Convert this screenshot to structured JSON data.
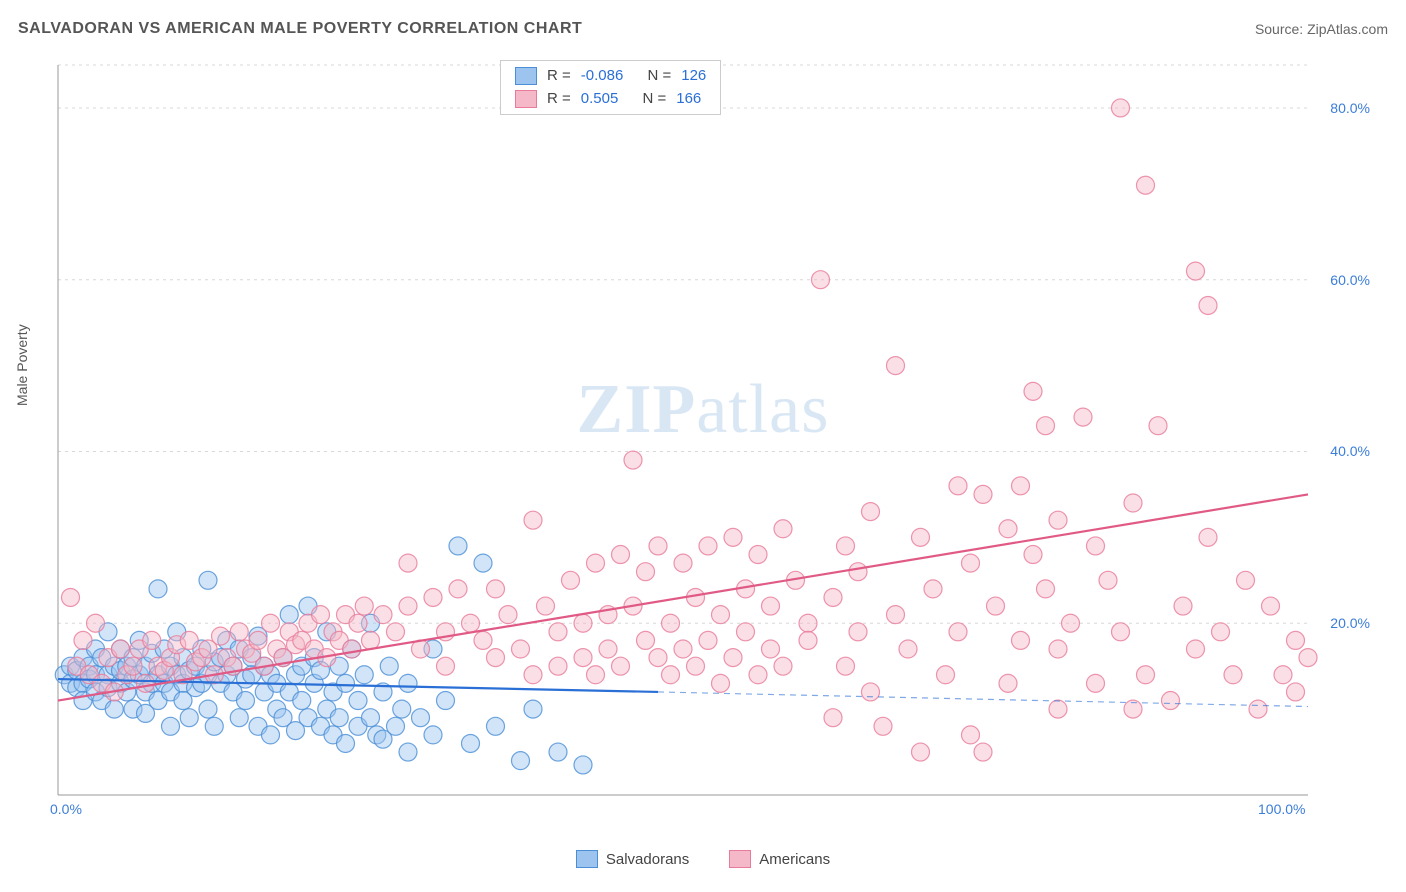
{
  "title": "SALVADORAN VS AMERICAN MALE POVERTY CORRELATION CHART",
  "source_label": "Source:",
  "source_name": "ZipAtlas.com",
  "ylabel": "Male Poverty",
  "watermark_a": "ZIP",
  "watermark_b": "atlas",
  "chart": {
    "type": "scatter",
    "xlim": [
      0,
      100
    ],
    "ylim": [
      0,
      85
    ],
    "x_ticks": [
      0,
      100
    ],
    "x_tick_labels": [
      "0.0%",
      "100.0%"
    ],
    "y_ticks": [
      20,
      40,
      60,
      80
    ],
    "y_tick_labels": [
      "20.0%",
      "40.0%",
      "60.0%",
      "80.0%"
    ],
    "grid_color": "#d8d8d8",
    "grid_dash": "3,4",
    "axis_color": "#999999",
    "background_color": "#ffffff",
    "label_color": "#3b7dd8",
    "marker_radius": 9,
    "marker_opacity": 0.45,
    "marker_stroke_width": 1.2,
    "line_width": 2.2,
    "dash_line": "6,5",
    "series": {
      "salvadorans": {
        "label": "Salvadorans",
        "fill": "#9cc4ef",
        "stroke": "#4a8fd6",
        "line_color": "#2a6fd6",
        "R": "-0.086",
        "N": "126",
        "trend_solid": {
          "x1": 0,
          "y1": 13.5,
          "x2": 48,
          "y2": 12.0
        },
        "trend_dash": {
          "x1": 48,
          "y1": 12.0,
          "x2": 100,
          "y2": 10.3
        },
        "points": [
          [
            0.5,
            14
          ],
          [
            1,
            13
          ],
          [
            1,
            15
          ],
          [
            1.5,
            12.5
          ],
          [
            1.5,
            14.5
          ],
          [
            2,
            16
          ],
          [
            2,
            13
          ],
          [
            2,
            11
          ],
          [
            2.5,
            15
          ],
          [
            2.5,
            13.5
          ],
          [
            3,
            14
          ],
          [
            3,
            12
          ],
          [
            3,
            17
          ],
          [
            3.5,
            16
          ],
          [
            3.5,
            11
          ],
          [
            4,
            14
          ],
          [
            4,
            12.5
          ],
          [
            4,
            19
          ],
          [
            4.5,
            15
          ],
          [
            4.5,
            10
          ],
          [
            5,
            13
          ],
          [
            5,
            14.5
          ],
          [
            5,
            17
          ],
          [
            5.5,
            12
          ],
          [
            5.5,
            15
          ],
          [
            6,
            13.5
          ],
          [
            6,
            10
          ],
          [
            6,
            16
          ],
          [
            6.5,
            14
          ],
          [
            6.5,
            18
          ],
          [
            7,
            12
          ],
          [
            7,
            15
          ],
          [
            7,
            9.5
          ],
          [
            7.5,
            13
          ],
          [
            7.5,
            16.5
          ],
          [
            8,
            14
          ],
          [
            8,
            11
          ],
          [
            8,
            24
          ],
          [
            8.5,
            13
          ],
          [
            8.5,
            17
          ],
          [
            9,
            15
          ],
          [
            9,
            12
          ],
          [
            9,
            8
          ],
          [
            9.5,
            14
          ],
          [
            9.5,
            19
          ],
          [
            10,
            13
          ],
          [
            10,
            16
          ],
          [
            10,
            11
          ],
          [
            10.5,
            14.5
          ],
          [
            10.5,
            9
          ],
          [
            11,
            15
          ],
          [
            11,
            12.5
          ],
          [
            11.5,
            17
          ],
          [
            11.5,
            13
          ],
          [
            12,
            14
          ],
          [
            12,
            10
          ],
          [
            12,
            25
          ],
          [
            12.5,
            15.5
          ],
          [
            12.5,
            8
          ],
          [
            13,
            13
          ],
          [
            13,
            16
          ],
          [
            13.5,
            14
          ],
          [
            13.5,
            18
          ],
          [
            14,
            12
          ],
          [
            14,
            15
          ],
          [
            14.5,
            9
          ],
          [
            14.5,
            17
          ],
          [
            15,
            13.5
          ],
          [
            15,
            11
          ],
          [
            15.5,
            16
          ],
          [
            15.5,
            14
          ],
          [
            16,
            8
          ],
          [
            16,
            18.5
          ],
          [
            16.5,
            12
          ],
          [
            16.5,
            15
          ],
          [
            17,
            7
          ],
          [
            17,
            14
          ],
          [
            17.5,
            13
          ],
          [
            17.5,
            10
          ],
          [
            18,
            16
          ],
          [
            18,
            9
          ],
          [
            18.5,
            12
          ],
          [
            18.5,
            21
          ],
          [
            19,
            14
          ],
          [
            19,
            7.5
          ],
          [
            19.5,
            15
          ],
          [
            19.5,
            11
          ],
          [
            20,
            22
          ],
          [
            20,
            9
          ],
          [
            20.5,
            13
          ],
          [
            20.5,
            16
          ],
          [
            21,
            8
          ],
          [
            21,
            14.5
          ],
          [
            21.5,
            10
          ],
          [
            21.5,
            19
          ],
          [
            22,
            12
          ],
          [
            22,
            7
          ],
          [
            22.5,
            15
          ],
          [
            22.5,
            9
          ],
          [
            23,
            13
          ],
          [
            23,
            6
          ],
          [
            23.5,
            17
          ],
          [
            24,
            11
          ],
          [
            24,
            8
          ],
          [
            24.5,
            14
          ],
          [
            25,
            9
          ],
          [
            25,
            20
          ],
          [
            25.5,
            7
          ],
          [
            26,
            12
          ],
          [
            26,
            6.5
          ],
          [
            26.5,
            15
          ],
          [
            27,
            8
          ],
          [
            27.5,
            10
          ],
          [
            28,
            13
          ],
          [
            28,
            5
          ],
          [
            29,
            9
          ],
          [
            30,
            7
          ],
          [
            30,
            17
          ],
          [
            31,
            11
          ],
          [
            32,
            29
          ],
          [
            33,
            6
          ],
          [
            34,
            27
          ],
          [
            35,
            8
          ],
          [
            37,
            4
          ],
          [
            38,
            10
          ],
          [
            40,
            5
          ],
          [
            42,
            3.5
          ]
        ]
      },
      "americans": {
        "label": "Americans",
        "fill": "#f5b8c8",
        "stroke": "#e87a9a",
        "line_color": "#e05a85",
        "R": "0.505",
        "N": "166",
        "trend_solid": {
          "x1": 0,
          "y1": 11,
          "x2": 100,
          "y2": 35
        },
        "points": [
          [
            1,
            23
          ],
          [
            1.5,
            15
          ],
          [
            2,
            18
          ],
          [
            2.5,
            14
          ],
          [
            3,
            20
          ],
          [
            3.5,
            13
          ],
          [
            4,
            16
          ],
          [
            4.5,
            12
          ],
          [
            5,
            17
          ],
          [
            5.5,
            14
          ],
          [
            6,
            15
          ],
          [
            6.5,
            17
          ],
          [
            7,
            13
          ],
          [
            7.5,
            18
          ],
          [
            8,
            15
          ],
          [
            8.5,
            14.5
          ],
          [
            9,
            16
          ],
          [
            9.5,
            17.5
          ],
          [
            10,
            14
          ],
          [
            10.5,
            18
          ],
          [
            11,
            15.5
          ],
          [
            11.5,
            16
          ],
          [
            12,
            17
          ],
          [
            12.5,
            14
          ],
          [
            13,
            18.5
          ],
          [
            13.5,
            16
          ],
          [
            14,
            15
          ],
          [
            14.5,
            19
          ],
          [
            15,
            17
          ],
          [
            15.5,
            16.5
          ],
          [
            16,
            18
          ],
          [
            16.5,
            15
          ],
          [
            17,
            20
          ],
          [
            17.5,
            17
          ],
          [
            18,
            16
          ],
          [
            18.5,
            19
          ],
          [
            19,
            17.5
          ],
          [
            19.5,
            18
          ],
          [
            20,
            20
          ],
          [
            20.5,
            17
          ],
          [
            21,
            21
          ],
          [
            21.5,
            16
          ],
          [
            22,
            19
          ],
          [
            22.5,
            18
          ],
          [
            23,
            21
          ],
          [
            23.5,
            17
          ],
          [
            24,
            20
          ],
          [
            24.5,
            22
          ],
          [
            25,
            18
          ],
          [
            26,
            21
          ],
          [
            27,
            19
          ],
          [
            28,
            22
          ],
          [
            28,
            27
          ],
          [
            29,
            17
          ],
          [
            30,
            23
          ],
          [
            31,
            19
          ],
          [
            31,
            15
          ],
          [
            32,
            24
          ],
          [
            33,
            20
          ],
          [
            34,
            18
          ],
          [
            35,
            24
          ],
          [
            35,
            16
          ],
          [
            36,
            21
          ],
          [
            37,
            17
          ],
          [
            38,
            32
          ],
          [
            38,
            14
          ],
          [
            39,
            22
          ],
          [
            40,
            19
          ],
          [
            40,
            15
          ],
          [
            41,
            25
          ],
          [
            42,
            20
          ],
          [
            42,
            16
          ],
          [
            43,
            27
          ],
          [
            43,
            14
          ],
          [
            44,
            21
          ],
          [
            44,
            17
          ],
          [
            45,
            28
          ],
          [
            45,
            15
          ],
          [
            46,
            22
          ],
          [
            46,
            39
          ],
          [
            47,
            18
          ],
          [
            47,
            26
          ],
          [
            48,
            16
          ],
          [
            48,
            29
          ],
          [
            49,
            20
          ],
          [
            49,
            14
          ],
          [
            50,
            27
          ],
          [
            50,
            17
          ],
          [
            51,
            23
          ],
          [
            51,
            15
          ],
          [
            52,
            29
          ],
          [
            52,
            18
          ],
          [
            53,
            21
          ],
          [
            53,
            13
          ],
          [
            54,
            30
          ],
          [
            54,
            16
          ],
          [
            55,
            24
          ],
          [
            55,
            19
          ],
          [
            56,
            28
          ],
          [
            56,
            14
          ],
          [
            57,
            22
          ],
          [
            57,
            17
          ],
          [
            58,
            31
          ],
          [
            58,
            15
          ],
          [
            59,
            25
          ],
          [
            60,
            20
          ],
          [
            60,
            18
          ],
          [
            61,
            60
          ],
          [
            62,
            23
          ],
          [
            62,
            9
          ],
          [
            63,
            29
          ],
          [
            63,
            15
          ],
          [
            64,
            26
          ],
          [
            64,
            19
          ],
          [
            65,
            33
          ],
          [
            65,
            12
          ],
          [
            66,
            8
          ],
          [
            67,
            50
          ],
          [
            67,
            21
          ],
          [
            68,
            17
          ],
          [
            69,
            30
          ],
          [
            69,
            5
          ],
          [
            70,
            24
          ],
          [
            71,
            14
          ],
          [
            72,
            36
          ],
          [
            72,
            19
          ],
          [
            73,
            27
          ],
          [
            73,
            7
          ],
          [
            74,
            35
          ],
          [
            74,
            5
          ],
          [
            75,
            22
          ],
          [
            76,
            31
          ],
          [
            76,
            13
          ],
          [
            77,
            36
          ],
          [
            77,
            18
          ],
          [
            78,
            28
          ],
          [
            78,
            47
          ],
          [
            79,
            24
          ],
          [
            79,
            43
          ],
          [
            80,
            32
          ],
          [
            80,
            10
          ],
          [
            80,
            17
          ],
          [
            81,
            20
          ],
          [
            82,
            44
          ],
          [
            83,
            13
          ],
          [
            83,
            29
          ],
          [
            84,
            25
          ],
          [
            85,
            80
          ],
          [
            85,
            19
          ],
          [
            86,
            34
          ],
          [
            86,
            10
          ],
          [
            87,
            71
          ],
          [
            87,
            14
          ],
          [
            88,
            43
          ],
          [
            89,
            11
          ],
          [
            90,
            22
          ],
          [
            91,
            61
          ],
          [
            91,
            17
          ],
          [
            92,
            30
          ],
          [
            92,
            57
          ],
          [
            93,
            19
          ],
          [
            94,
            14
          ],
          [
            95,
            25
          ],
          [
            96,
            10
          ],
          [
            97,
            22
          ],
          [
            98,
            14
          ],
          [
            99,
            18
          ],
          [
            99,
            12
          ],
          [
            100,
            16
          ]
        ]
      }
    }
  },
  "corr_box": {
    "R_label": "R =",
    "N_label": "N ="
  },
  "legend": {
    "a": "Salvadorans",
    "b": "Americans"
  }
}
